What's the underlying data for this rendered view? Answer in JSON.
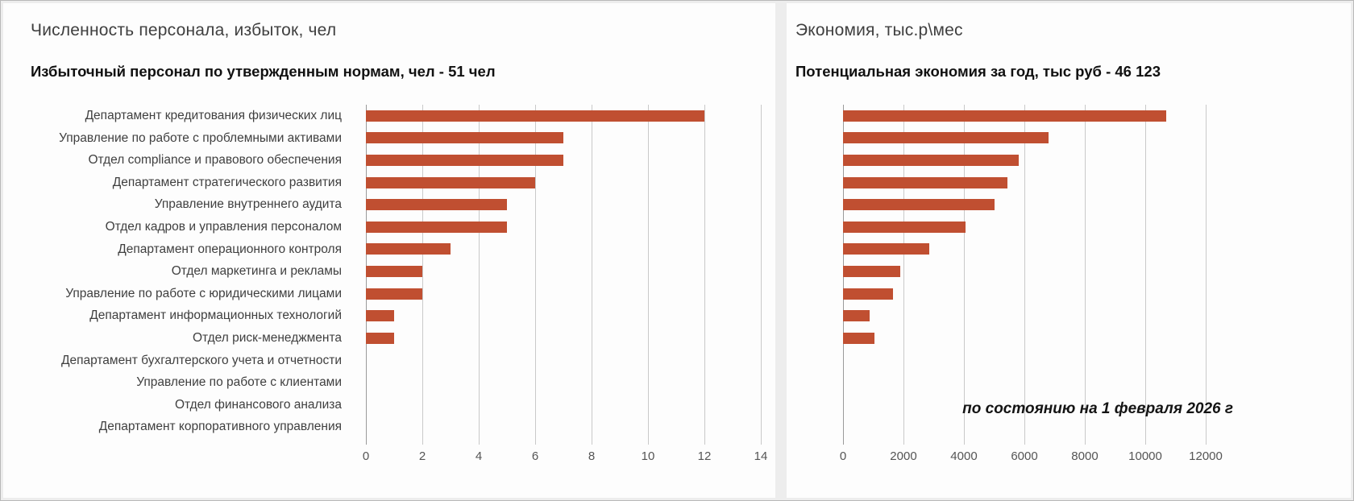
{
  "footnote": "по состоянию на 1 февраля 2026 г",
  "chart_data": [
    {
      "type": "bar",
      "orientation": "horizontal",
      "title": "Численность персонала, избыток, чел",
      "subtitle": "Избыточный персонал по утвержденным нормам, чел - 51 чел",
      "categories": [
        "Департамент кредитования физических лиц",
        "Управление по работе с проблемными активами",
        "Отдел compliance и правового обеспечения",
        "Департамент стратегического развития",
        "Управление внутреннего аудита",
        "Отдел кадров и управления персоналом",
        "Департамент операционного контроля",
        "Отдел маркетинга и рекламы",
        "Управление по работе с юридическими лицами",
        "Департамент информационных технологий",
        "Отдел риск-менеджмента",
        "Департамент бухгалтерского учета и отчетности",
        "Управление по работе с клиентами",
        "Отдел финансового анализа",
        "Департамент корпоративного управления"
      ],
      "values": [
        12,
        7,
        7,
        6,
        5,
        5,
        3,
        2,
        2,
        1,
        1,
        0,
        0,
        0,
        0
      ],
      "xlim": [
        0,
        14
      ],
      "xticks": [
        0,
        2,
        4,
        6,
        8,
        10,
        12,
        14
      ],
      "bar_color": "#c04f31",
      "gridlines": true,
      "legend": "none",
      "show_category_labels": true
    },
    {
      "type": "bar",
      "orientation": "horizontal",
      "title": "Экономия, тыс.р\\мес",
      "subtitle": "Потенциальная экономия за год, тыс руб - 46 123",
      "categories": [
        "Департамент кредитования физических лиц",
        "Управление по работе с проблемными активами",
        "Отдел compliance и правового обеспечения",
        "Департамент стратегического развития",
        "Управление внутреннего аудита",
        "Отдел кадров и управления персоналом",
        "Департамент операционного контроля",
        "Отдел маркетинга и рекламы",
        "Управление по работе с юридическими лицами",
        "Департамент информационных технологий",
        "Отдел риск-менеджмента",
        "Департамент бухгалтерского учета и отчетности",
        "Управление по работе с клиентами",
        "Отдел финансового анализа",
        "Департамент корпоративного управления"
      ],
      "values": [
        10700,
        6800,
        5800,
        5450,
        5000,
        4050,
        2850,
        1900,
        1650,
        873,
        1050,
        0,
        0,
        0,
        0
      ],
      "xlim": [
        0,
        12000
      ],
      "xticks": [
        0,
        2000,
        4000,
        6000,
        8000,
        10000,
        12000
      ],
      "bar_color": "#c04f31",
      "gridlines": true,
      "legend": "none",
      "show_category_labels": false
    }
  ]
}
